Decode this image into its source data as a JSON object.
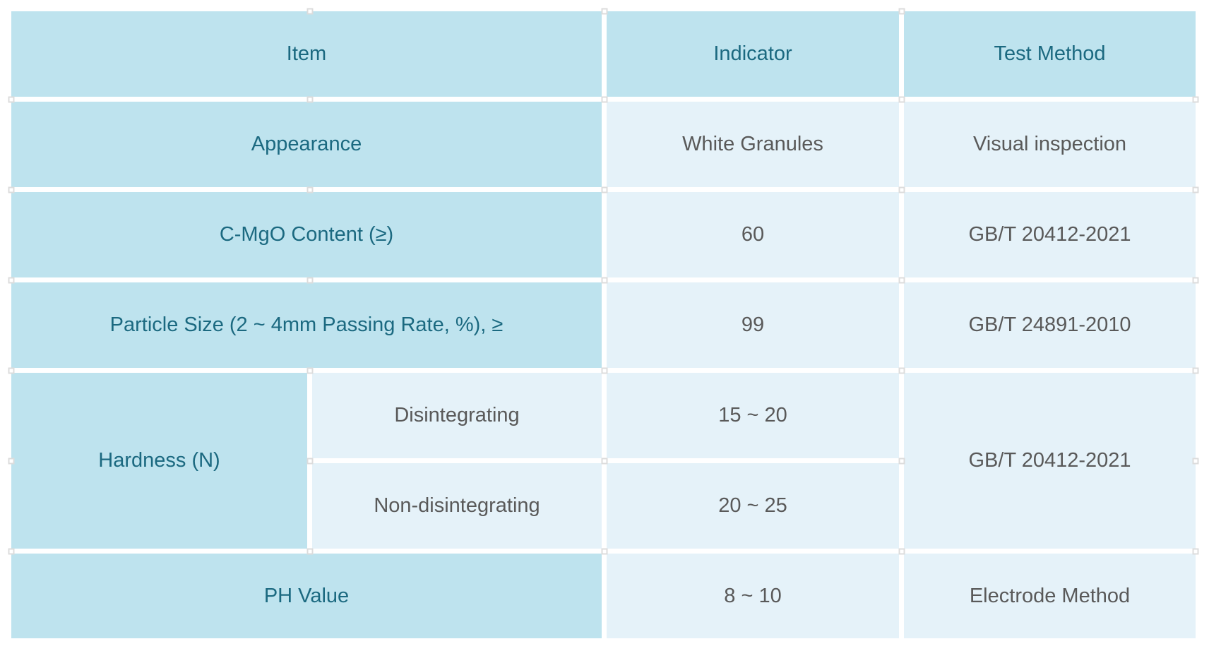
{
  "chart_data": {
    "type": "table",
    "columns": [
      "Item",
      "Indicator",
      "Test Method"
    ],
    "rows": [
      {
        "item": "Appearance",
        "indicator": "White Granules",
        "test_method": "Visual inspection"
      },
      {
        "item": "C-MgO Content (≥)",
        "indicator": "60",
        "test_method": "GB/T 20412-2021"
      },
      {
        "item": "Particle Size (2 ~ 4mm Passing Rate, %), ≥",
        "indicator": "99",
        "test_method": "GB/T 24891-2010"
      },
      {
        "item": "Hardness (N)",
        "sub_rows": [
          {
            "condition": "Disintegrating",
            "indicator": "15 ~ 20"
          },
          {
            "condition": "Non-disintegrating",
            "indicator": "20 ~ 25"
          }
        ],
        "test_method": "GB/T 20412-2021"
      },
      {
        "item": "PH Value",
        "indicator": "8 ~ 10",
        "test_method": "Electrode Method"
      }
    ]
  },
  "colors": {
    "page_bg": "#ffffff",
    "cell_dark": "#bee3ee",
    "cell_light": "#e5f2f9",
    "item_text": "#1b6980",
    "value_text": "#595959",
    "grid_gap": "#ffffff",
    "marker_border": "#dcdcdc"
  }
}
